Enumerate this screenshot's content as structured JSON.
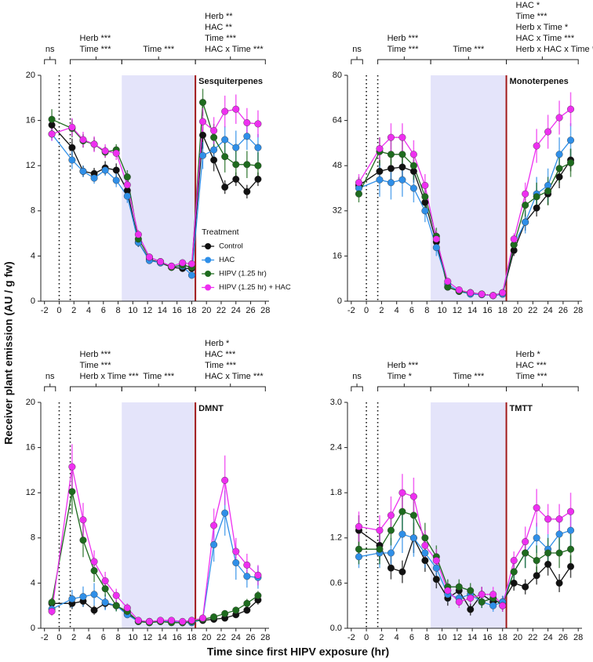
{
  "x_label": "Time since first HIPV exposure (hr)",
  "y_label": "Receiver plant emission (AU / g fw)",
  "chart_data": [
    {
      "type": "line",
      "title": "Sesquiterpenes",
      "x": [
        -1,
        1.75,
        3.25,
        4.75,
        6.25,
        7.75,
        9.25,
        10.75,
        12.25,
        13.75,
        15.25,
        16.75,
        18,
        19.5,
        21,
        22.5,
        24,
        25.5,
        27
      ],
      "xlim": [
        -2.5,
        28.5
      ],
      "xticks": [
        -2,
        0,
        2,
        4,
        6,
        8,
        10,
        12,
        14,
        16,
        18,
        20,
        22,
        24,
        26,
        28
      ],
      "ylim": [
        0,
        20
      ],
      "yticks": [
        0,
        4,
        8,
        12,
        16,
        20
      ],
      "shade": [
        8.5,
        18.5
      ],
      "exposure_line": 18.5,
      "dotted_lines": [
        0,
        1.5
      ],
      "legend": true,
      "legend_title": "Treatment",
      "brackets": [
        {
          "from": -2,
          "to": -0.5,
          "lines": [
            "ns"
          ]
        },
        {
          "from": 1.5,
          "to": 8.5,
          "lines": [
            "Herb ***",
            "Time ***"
          ]
        },
        {
          "from": 8.5,
          "to": 18.5,
          "lines": [
            "Time ***"
          ]
        },
        {
          "from": 18.5,
          "to": 28,
          "lines": [
            "Herb **",
            "HAC **",
            "Time ***",
            "HAC x Time ***"
          ]
        }
      ],
      "series": [
        {
          "name": "Control",
          "color": "#111111",
          "values": [
            15.6,
            13.6,
            11.5,
            11.3,
            11.8,
            11.6,
            9.8,
            5.2,
            3.7,
            3.4,
            3.0,
            2.9,
            2.9,
            14.7,
            12.5,
            10.1,
            10.8,
            9.7,
            10.8
          ],
          "errors": [
            0.6,
            0.8,
            0.5,
            0.5,
            0.6,
            0.6,
            0.6,
            0.4,
            0.3,
            0.3,
            0.3,
            0.3,
            0.3,
            1.2,
            1.0,
            0.6,
            0.6,
            0.6,
            0.6
          ]
        },
        {
          "name": "HAC",
          "color": "#2f8fe8",
          "values": [
            14.8,
            12.5,
            11.5,
            10.9,
            11.6,
            10.7,
            9.3,
            5.2,
            3.6,
            3.4,
            3.1,
            3.1,
            2.3,
            12.9,
            13.4,
            14.3,
            13.6,
            14.6,
            13.6
          ],
          "errors": [
            0.6,
            0.8,
            0.5,
            0.5,
            0.5,
            0.6,
            0.6,
            0.4,
            0.3,
            0.3,
            0.3,
            0.3,
            0.3,
            1.2,
            1.2,
            1.2,
            1.5,
            1.2,
            1.2
          ]
        },
        {
          "name": "HIPV (1.25 hr)",
          "color": "#1e6b1e",
          "values": [
            16.1,
            15.3,
            14.2,
            13.9,
            13.2,
            13.4,
            11.0,
            5.5,
            3.9,
            3.5,
            3.0,
            3.2,
            3.0,
            17.6,
            14.5,
            12.8,
            12.1,
            12.1,
            12.0
          ],
          "errors": [
            0.9,
            0.8,
            0.6,
            0.6,
            0.5,
            0.5,
            0.6,
            0.4,
            0.3,
            0.3,
            0.3,
            0.3,
            0.3,
            1.2,
            1.2,
            1.4,
            1.3,
            1.2,
            1.2
          ]
        },
        {
          "name": "HIPV (1.25 hr) + HAC",
          "color": "#ee2ff0",
          "values": [
            14.8,
            15.4,
            14.3,
            13.9,
            13.3,
            13.1,
            10.3,
            5.9,
            3.9,
            3.5,
            3.1,
            3.4,
            3.3,
            15.9,
            15.1,
            16.8,
            17.0,
            15.8,
            15.7
          ],
          "errors": [
            0.6,
            0.8,
            0.7,
            0.7,
            0.6,
            0.6,
            0.6,
            0.4,
            0.3,
            0.3,
            0.3,
            0.3,
            0.3,
            1.2,
            1.2,
            1.4,
            1.3,
            1.3,
            1.2
          ]
        }
      ]
    },
    {
      "type": "line",
      "title": "Monoterpenes",
      "x": [
        -1,
        1.75,
        3.25,
        4.75,
        6.25,
        7.75,
        9.25,
        10.75,
        12.25,
        13.75,
        15.25,
        16.75,
        18,
        19.5,
        21,
        22.5,
        24,
        25.5,
        27
      ],
      "xlim": [
        -2.5,
        28.5
      ],
      "xticks": [
        -2,
        0,
        2,
        4,
        6,
        8,
        10,
        12,
        14,
        16,
        18,
        20,
        22,
        24,
        26,
        28
      ],
      "ylim": [
        0,
        80
      ],
      "yticks": [
        0,
        16,
        32,
        48,
        64,
        80
      ],
      "shade": [
        8.5,
        18.5
      ],
      "exposure_line": 18.5,
      "dotted_lines": [
        0,
        1.5
      ],
      "brackets": [
        {
          "from": -2,
          "to": -0.5,
          "lines": [
            "ns"
          ]
        },
        {
          "from": 1.5,
          "to": 8.5,
          "lines": [
            "Herb ***",
            "Time ***"
          ]
        },
        {
          "from": 8.5,
          "to": 18.5,
          "lines": [
            "Time ***"
          ]
        },
        {
          "from": 18.5,
          "to": 28,
          "lines": [
            "HAC *",
            "Time ***",
            "Herb x Time *",
            "HAC x Time ***",
            "Herb x HAC x Time *"
          ]
        }
      ],
      "series": [
        {
          "color": "#111111",
          "values": [
            41,
            46,
            47,
            47.5,
            46,
            35,
            21,
            5,
            3.5,
            3,
            2.5,
            2,
            2.5,
            18,
            28,
            33,
            38,
            44,
            50
          ],
          "errors": [
            3,
            4,
            4,
            4,
            4,
            4,
            3,
            1,
            0.8,
            0.6,
            0.5,
            0.5,
            0.5,
            2,
            3,
            3,
            4,
            4,
            4
          ]
        },
        {
          "color": "#2f8fe8",
          "values": [
            40,
            43,
            42,
            43,
            40,
            32,
            19,
            6,
            3.5,
            2.5,
            2.3,
            2,
            2.5,
            20,
            28,
            38,
            41,
            52,
            57
          ],
          "errors": [
            3,
            6,
            6,
            6,
            5,
            4,
            3,
            1,
            0.8,
            0.6,
            0.5,
            0.5,
            0.5,
            2,
            4,
            6,
            6,
            6,
            6
          ]
        },
        {
          "color": "#1e6b1e",
          "values": [
            38,
            53,
            52,
            52,
            48,
            37,
            23,
            5,
            3.5,
            3,
            2.5,
            2,
            3,
            20,
            34,
            37,
            39,
            47,
            49
          ],
          "errors": [
            3,
            5,
            5,
            5,
            5,
            4,
            3,
            1,
            0.8,
            0.6,
            0.5,
            0.5,
            0.5,
            2,
            4,
            5,
            5,
            5,
            5
          ]
        },
        {
          "color": "#ee2ff0",
          "values": [
            42,
            54,
            58,
            58,
            52,
            41,
            22,
            7,
            4,
            3,
            2.5,
            2,
            3,
            22,
            38,
            55,
            60,
            65,
            68
          ],
          "errors": [
            3,
            4,
            5,
            5,
            5,
            4,
            3,
            1,
            0.8,
            0.6,
            0.5,
            0.5,
            0.5,
            2,
            4,
            6,
            6,
            6,
            6
          ]
        }
      ]
    },
    {
      "type": "line",
      "title": "DMNT",
      "x": [
        -1,
        1.75,
        3.25,
        4.75,
        6.25,
        7.75,
        9.25,
        10.75,
        12.25,
        13.75,
        15.25,
        16.75,
        18,
        19.5,
        21,
        22.5,
        24,
        25.5,
        27
      ],
      "xlim": [
        -2.5,
        28.5
      ],
      "xticks": [
        -2,
        0,
        2,
        4,
        6,
        8,
        10,
        12,
        14,
        16,
        18,
        20,
        22,
        24,
        26,
        28
      ],
      "ylim": [
        0,
        20
      ],
      "yticks": [
        0,
        4,
        8,
        12,
        16,
        20
      ],
      "shade": [
        8.5,
        18.5
      ],
      "exposure_line": 18.5,
      "dotted_lines": [
        0,
        1.5
      ],
      "brackets": [
        {
          "from": -2,
          "to": -0.5,
          "lines": [
            "ns"
          ]
        },
        {
          "from": 1.5,
          "to": 8.5,
          "lines": [
            "Herb ***",
            "Time ***",
            "Herb x Time ***"
          ]
        },
        {
          "from": 8.5,
          "to": 18.5,
          "lines": [
            "Time ***"
          ]
        },
        {
          "from": 18.5,
          "to": 28,
          "lines": [
            "Herb *",
            "HAC ***",
            "Time ***",
            "HAC x Time ***"
          ]
        }
      ],
      "series": [
        {
          "color": "#111111",
          "values": [
            2.2,
            2.2,
            2.4,
            1.6,
            2.2,
            2.0,
            1.3,
            0.6,
            0.6,
            0.6,
            0.6,
            0.5,
            0.6,
            0.7,
            0.8,
            0.9,
            1.2,
            1.6,
            2.5
          ],
          "errors": [
            0.4,
            0.5,
            0.5,
            0.4,
            0.5,
            0.4,
            0.3,
            0.1,
            0.1,
            0.1,
            0.1,
            0.1,
            0.1,
            0.1,
            0.2,
            0.2,
            0.2,
            0.3,
            0.4
          ]
        },
        {
          "color": "#2f8fe8",
          "values": [
            1.7,
            2.6,
            2.8,
            3.0,
            2.3,
            2.0,
            1.2,
            0.6,
            0.5,
            0.6,
            0.6,
            0.5,
            0.5,
            0.8,
            7.4,
            10.2,
            5.8,
            4.6,
            4.5
          ],
          "errors": [
            0.4,
            0.8,
            0.9,
            1.0,
            0.7,
            0.5,
            0.3,
            0.1,
            0.1,
            0.1,
            0.1,
            0.1,
            0.1,
            0.2,
            1.5,
            2.0,
            1.5,
            1.0,
            1.0
          ]
        },
        {
          "color": "#1e6b1e",
          "values": [
            2.3,
            12.1,
            7.8,
            5.1,
            3.5,
            2.0,
            1.5,
            0.6,
            0.5,
            0.6,
            0.5,
            0.5,
            0.6,
            0.8,
            1.0,
            1.3,
            1.6,
            2.2,
            2.9
          ],
          "errors": [
            0.4,
            2.0,
            1.5,
            1.0,
            0.7,
            0.5,
            0.3,
            0.1,
            0.1,
            0.1,
            0.1,
            0.1,
            0.1,
            0.2,
            0.2,
            0.3,
            0.3,
            0.4,
            0.4
          ]
        },
        {
          "color": "#ee2ff0",
          "values": [
            1.5,
            14.3,
            9.6,
            5.9,
            4.2,
            2.9,
            1.8,
            0.7,
            0.6,
            0.7,
            0.7,
            0.6,
            0.7,
            0.9,
            9.1,
            13.1,
            6.8,
            5.6,
            4.7
          ],
          "errors": [
            0.4,
            2.0,
            1.5,
            1.0,
            0.8,
            0.6,
            0.4,
            0.1,
            0.1,
            0.1,
            0.1,
            0.1,
            0.1,
            0.2,
            1.5,
            2.2,
            1.2,
            1.0,
            0.9
          ]
        }
      ]
    },
    {
      "type": "line",
      "title": "TMTT",
      "x": [
        -1,
        1.75,
        3.25,
        4.75,
        6.25,
        7.75,
        9.25,
        10.75,
        12.25,
        13.75,
        15.25,
        16.75,
        18,
        19.5,
        21,
        22.5,
        24,
        25.5,
        27
      ],
      "xlim": [
        -2.5,
        28.5
      ],
      "xticks": [
        -2,
        0,
        2,
        4,
        6,
        8,
        10,
        12,
        14,
        16,
        18,
        20,
        22,
        24,
        26,
        28
      ],
      "ylim": [
        0,
        3
      ],
      "yticks": [
        {
          "value": 0,
          "label": "0.0"
        },
        0.6,
        1.2,
        1.8,
        2.4,
        {
          "value": 3,
          "label": "3.0"
        }
      ],
      "shade": [
        8.5,
        18.5
      ],
      "exposure_line": 18.5,
      "dotted_lines": [
        0,
        1.5
      ],
      "brackets": [
        {
          "from": -2,
          "to": -0.5,
          "lines": [
            "ns"
          ]
        },
        {
          "from": 1.5,
          "to": 8.5,
          "lines": [
            "Herb ***",
            "Time *"
          ]
        },
        {
          "from": 8.5,
          "to": 18.5,
          "lines": [
            "Time ***"
          ]
        },
        {
          "from": 18.5,
          "to": 28,
          "lines": [
            "Herb *",
            "HAC ***",
            "Time ***"
          ]
        }
      ],
      "series": [
        {
          "color": "#111111",
          "values": [
            1.3,
            1.1,
            0.8,
            0.75,
            1.2,
            0.9,
            0.65,
            0.4,
            0.5,
            0.25,
            0.45,
            0.35,
            0.35,
            0.6,
            0.55,
            0.7,
            0.85,
            0.6,
            0.82
          ],
          "errors": [
            0.2,
            0.2,
            0.15,
            0.15,
            0.2,
            0.15,
            0.12,
            0.1,
            0.1,
            0.08,
            0.1,
            0.08,
            0.08,
            0.1,
            0.1,
            0.12,
            0.15,
            0.12,
            0.15
          ]
        },
        {
          "color": "#2f8fe8",
          "values": [
            0.95,
            1.0,
            1.0,
            1.25,
            1.2,
            1.0,
            0.8,
            0.45,
            0.4,
            0.45,
            0.35,
            0.3,
            0.35,
            0.75,
            1.0,
            1.2,
            1.05,
            1.25,
            1.3
          ],
          "errors": [
            0.15,
            0.2,
            0.2,
            0.25,
            0.25,
            0.2,
            0.15,
            0.1,
            0.1,
            0.1,
            0.08,
            0.08,
            0.08,
            0.12,
            0.2,
            0.2,
            0.2,
            0.25,
            0.25
          ]
        },
        {
          "color": "#1e6b1e",
          "values": [
            1.05,
            1.05,
            1.3,
            1.55,
            1.5,
            1.2,
            0.95,
            0.55,
            0.55,
            0.5,
            0.35,
            0.4,
            0.3,
            0.75,
            1.0,
            0.9,
            1.0,
            1.0,
            1.05
          ],
          "errors": [
            0.2,
            0.2,
            0.2,
            0.25,
            0.25,
            0.2,
            0.15,
            0.1,
            0.1,
            0.1,
            0.08,
            0.08,
            0.08,
            0.12,
            0.2,
            0.2,
            0.2,
            0.2,
            0.2
          ]
        },
        {
          "color": "#ee2ff0",
          "values": [
            1.35,
            1.3,
            1.5,
            1.8,
            1.75,
            1.1,
            0.9,
            0.5,
            0.35,
            0.4,
            0.45,
            0.45,
            0.3,
            0.9,
            1.15,
            1.6,
            1.45,
            1.45,
            1.55
          ],
          "errors": [
            0.2,
            0.2,
            0.25,
            0.25,
            0.25,
            0.2,
            0.15,
            0.1,
            0.08,
            0.08,
            0.1,
            0.1,
            0.08,
            0.12,
            0.2,
            0.25,
            0.2,
            0.2,
            0.25
          ]
        }
      ]
    }
  ]
}
